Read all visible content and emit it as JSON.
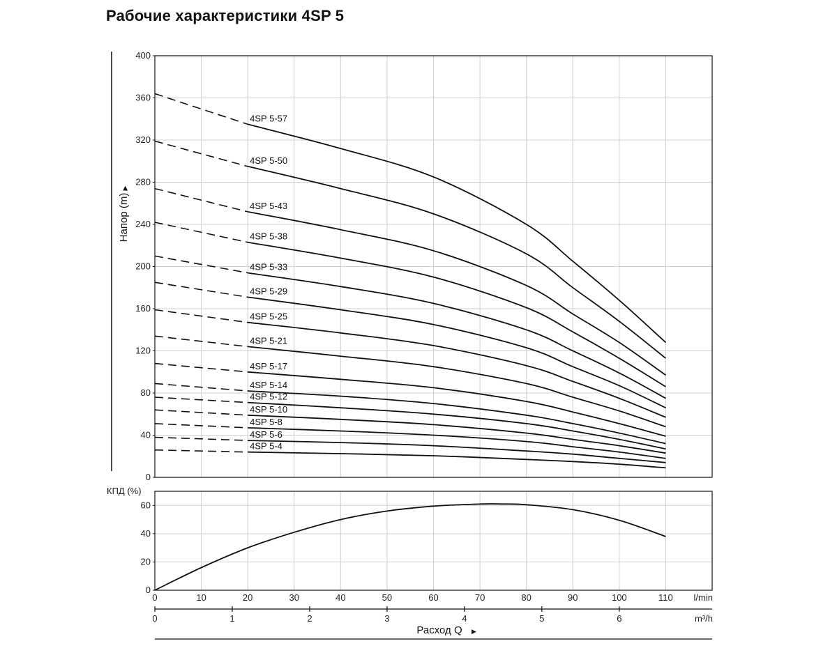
{
  "chart_data": [
    {
      "type": "line",
      "title": "Рабочие характеристики 4SP 5",
      "ylabel": "Напор (m)",
      "xlabel": "Расход Q",
      "xlim": [
        0,
        120
      ],
      "ylim": [
        0,
        400
      ],
      "x_ticks": [
        0,
        10,
        20,
        30,
        40,
        50,
        60,
        70,
        80,
        90,
        100,
        110
      ],
      "y_ticks": [
        0,
        40,
        80,
        120,
        160,
        200,
        240,
        280,
        320,
        360,
        400
      ],
      "x_unit": "l/min",
      "grid": true,
      "dashed_segment_x": [
        0,
        20
      ],
      "series": [
        {
          "name": "4SP 5-57",
          "x": [
            0,
            20,
            40,
            60,
            80,
            90,
            100,
            110
          ],
          "y": [
            364,
            335,
            312,
            285,
            240,
            205,
            168,
            128
          ]
        },
        {
          "name": "4SP 5-50",
          "x": [
            0,
            20,
            40,
            60,
            80,
            90,
            100,
            110
          ],
          "y": [
            319,
            295,
            274,
            250,
            212,
            180,
            148,
            113
          ]
        },
        {
          "name": "4SP 5-43",
          "x": [
            0,
            20,
            40,
            60,
            80,
            90,
            100,
            110
          ],
          "y": [
            274,
            252,
            235,
            215,
            182,
            155,
            128,
            97
          ]
        },
        {
          "name": "4SP 5-38",
          "x": [
            0,
            20,
            40,
            60,
            80,
            90,
            100,
            110
          ],
          "y": [
            242,
            223,
            208,
            190,
            161,
            138,
            113,
            86
          ]
        },
        {
          "name": "4SP 5-33",
          "x": [
            0,
            20,
            40,
            60,
            80,
            90,
            100,
            110
          ],
          "y": [
            210,
            194,
            181,
            165,
            140,
            120,
            99,
            75
          ]
        },
        {
          "name": "4SP 5-29",
          "x": [
            0,
            20,
            40,
            60,
            80,
            90,
            100,
            110
          ],
          "y": [
            185,
            171,
            159,
            145,
            123,
            105,
            87,
            66
          ]
        },
        {
          "name": "4SP 5-25",
          "x": [
            0,
            20,
            40,
            60,
            80,
            90,
            100,
            110
          ],
          "y": [
            159,
            147,
            137,
            125,
            106,
            91,
            75,
            57
          ]
        },
        {
          "name": "4SP 5-21",
          "x": [
            0,
            20,
            40,
            60,
            80,
            90,
            100,
            110
          ],
          "y": [
            134,
            124,
            115,
            105,
            89,
            76,
            63,
            48
          ]
        },
        {
          "name": "4SP 5-17",
          "x": [
            0,
            20,
            40,
            60,
            80,
            90,
            100,
            110
          ],
          "y": [
            108,
            100,
            93,
            85,
            72,
            62,
            51,
            39
          ]
        },
        {
          "name": "4SP 5-14",
          "x": [
            0,
            20,
            40,
            60,
            80,
            90,
            100,
            110
          ],
          "y": [
            89,
            82,
            77,
            70,
            59,
            51,
            42,
            32
          ]
        },
        {
          "name": "4SP 5-12",
          "x": [
            0,
            20,
            40,
            60,
            80,
            90,
            100,
            110
          ],
          "y": [
            76,
            71,
            66,
            60,
            51,
            44,
            36,
            27
          ]
        },
        {
          "name": "4SP 5-10",
          "x": [
            0,
            20,
            40,
            60,
            80,
            90,
            100,
            110
          ],
          "y": [
            64,
            59,
            55,
            50,
            42,
            36,
            30,
            23
          ]
        },
        {
          "name": "4SP 5-8",
          "x": [
            0,
            20,
            40,
            60,
            80,
            90,
            100,
            110
          ],
          "y": [
            51,
            47,
            44,
            40,
            34,
            29,
            24,
            18
          ]
        },
        {
          "name": "4SP 5-6",
          "x": [
            0,
            20,
            40,
            60,
            80,
            90,
            100,
            110
          ],
          "y": [
            38,
            35,
            33,
            30,
            25,
            22,
            18,
            14
          ]
        },
        {
          "name": "4SP 5-4",
          "x": [
            0,
            20,
            40,
            60,
            80,
            90,
            100,
            110
          ],
          "y": [
            26,
            24,
            22.5,
            20.5,
            17,
            15,
            12.5,
            9
          ]
        }
      ]
    },
    {
      "type": "line",
      "ylabel": "КПД (%)",
      "ylim": [
        0,
        70
      ],
      "y_ticks": [
        0,
        20,
        40,
        60
      ],
      "xlim": [
        0,
        120
      ],
      "x_ticks": [
        0,
        10,
        20,
        30,
        40,
        50,
        60,
        70,
        80,
        90,
        100,
        110
      ],
      "x_unit": "l/min",
      "x2_ticks": [
        0,
        1,
        2,
        3,
        4,
        5,
        6
      ],
      "x2_unit": "m³/h",
      "xlabel": "Расход Q",
      "grid": true,
      "series": [
        {
          "x": [
            0,
            10,
            20,
            30,
            40,
            50,
            60,
            70,
            75,
            80,
            90,
            100,
            110
          ],
          "y": [
            0,
            16,
            30,
            41,
            50,
            56,
            59.5,
            61,
            61,
            60.5,
            57,
            49.5,
            38
          ]
        }
      ]
    }
  ]
}
